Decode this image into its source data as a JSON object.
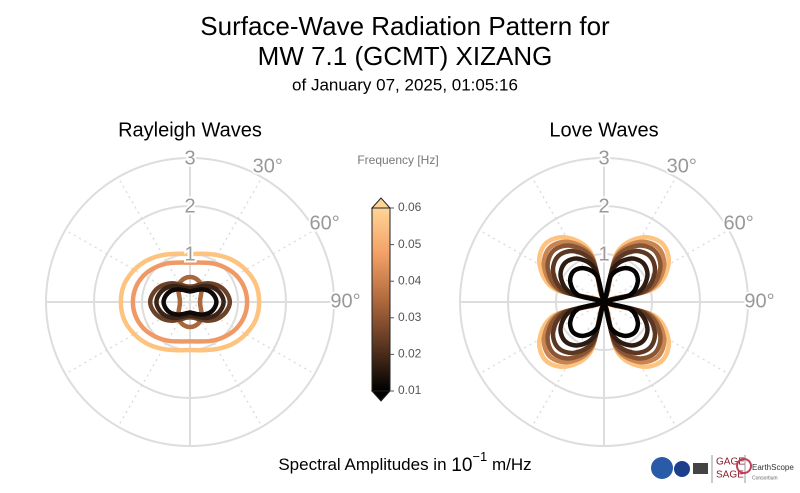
{
  "figure": {
    "title": [
      "Surface-Wave Radiation Pattern for",
      "MW 7.1 (GCMT) XIZANG"
    ],
    "subtitle": "of January 07, 2025, 01:05:16"
  },
  "chart_data": [
    {
      "type": "polar",
      "title": "Rayleigh Waves",
      "rlim": [
        0,
        3
      ],
      "rticks": [
        1,
        2,
        3
      ],
      "thetagrid": [
        0,
        30,
        60,
        90,
        120,
        150,
        180,
        210,
        240,
        270,
        300,
        330
      ],
      "thetaticks": [
        {
          "value": 30,
          "label": "30°"
        },
        {
          "value": 60,
          "label": "60°"
        },
        {
          "value": 90,
          "label": "90°"
        }
      ],
      "azimuth": [
        0,
        15,
        30,
        45,
        60,
        75,
        90,
        105,
        120,
        135,
        150,
        165,
        180,
        195,
        210,
        225,
        240,
        255,
        270,
        285,
        300,
        315,
        330,
        345
      ],
      "series": [
        {
          "color": "#fdc37f",
          "values": [
            1,
            1.04,
            1.13,
            1.24,
            1.34,
            1.42,
            1.44,
            1.42,
            1.34,
            1.24,
            1.13,
            1.04,
            1,
            1.04,
            1.13,
            1.24,
            1.34,
            1.42,
            1.44,
            1.42,
            1.34,
            1.24,
            1.13,
            1.04
          ]
        },
        {
          "color": "#ef9a66",
          "values": [
            0.82,
            0.85,
            0.93,
            1.02,
            1.11,
            1.17,
            1.19,
            1.17,
            1.11,
            1.02,
            0.93,
            0.85,
            0.82,
            0.85,
            0.93,
            1.02,
            1.11,
            1.17,
            1.19,
            1.17,
            1.11,
            1.02,
            0.93,
            0.85
          ]
        },
        {
          "color": "#a8673d",
          "values": [
            0.52,
            0.5,
            0.44,
            0.34,
            0.26,
            0.22,
            0.21,
            0.22,
            0.26,
            0.34,
            0.44,
            0.5,
            0.52,
            0.5,
            0.44,
            0.34,
            0.26,
            0.22,
            0.21,
            0.22,
            0.26,
            0.34,
            0.44,
            0.5
          ]
        },
        {
          "color": "#6b4128",
          "values": [
            0.32,
            0.34,
            0.42,
            0.55,
            0.68,
            0.78,
            0.83,
            0.78,
            0.68,
            0.55,
            0.42,
            0.34,
            0.32,
            0.34,
            0.42,
            0.55,
            0.68,
            0.78,
            0.83,
            0.78,
            0.68,
            0.55,
            0.42,
            0.34
          ]
        },
        {
          "color": "#3a2418",
          "values": [
            0.28,
            0.3,
            0.36,
            0.47,
            0.58,
            0.66,
            0.7,
            0.66,
            0.58,
            0.47,
            0.36,
            0.3,
            0.28,
            0.3,
            0.36,
            0.47,
            0.58,
            0.66,
            0.7,
            0.66,
            0.58,
            0.47,
            0.36,
            0.3
          ]
        },
        {
          "color": "#0f0a08",
          "values": [
            0.22,
            0.24,
            0.29,
            0.37,
            0.46,
            0.52,
            0.55,
            0.52,
            0.46,
            0.37,
            0.29,
            0.24,
            0.22,
            0.24,
            0.29,
            0.37,
            0.46,
            0.52,
            0.55,
            0.52,
            0.46,
            0.37,
            0.29,
            0.24
          ]
        }
      ]
    },
    {
      "type": "polar",
      "title": "Love Waves",
      "rlim": [
        0,
        3
      ],
      "rticks": [
        1,
        2,
        3
      ],
      "thetagrid": [
        0,
        30,
        60,
        90,
        120,
        150,
        180,
        210,
        240,
        270,
        300,
        330
      ],
      "thetaticks": [
        {
          "value": 30,
          "label": "30°"
        },
        {
          "value": 60,
          "label": "60°"
        },
        {
          "value": 90,
          "label": "90°"
        }
      ],
      "azimuth": [
        0,
        15,
        30,
        45,
        60,
        75,
        90,
        105,
        120,
        135,
        150,
        165,
        180,
        195,
        210,
        225,
        240,
        255,
        270,
        285,
        300,
        315,
        330,
        345
      ],
      "series": [
        {
          "color": "#fdc37f",
          "values": [
            0.05,
            1.07,
            1.55,
            1.72,
            1.55,
            1.07,
            0.05,
            1.07,
            1.55,
            1.72,
            1.55,
            1.07,
            0.05,
            1.07,
            1.55,
            1.72,
            1.55,
            1.07,
            0.05,
            1.07,
            1.55,
            1.72,
            1.55,
            1.07
          ]
        },
        {
          "color": "#c98551",
          "values": [
            0.05,
            0.99,
            1.44,
            1.6,
            1.44,
            0.99,
            0.05,
            0.99,
            1.44,
            1.6,
            1.44,
            0.99,
            0.05,
            0.99,
            1.44,
            1.6,
            1.44,
            0.99,
            0.05,
            0.99,
            1.44,
            1.6,
            1.44,
            0.99
          ]
        },
        {
          "color": "#8a5533",
          "values": [
            0.05,
            0.93,
            1.35,
            1.5,
            1.35,
            0.93,
            0.05,
            0.93,
            1.35,
            1.5,
            1.35,
            0.93,
            0.05,
            0.93,
            1.35,
            1.5,
            1.35,
            0.93,
            0.05,
            0.93,
            1.35,
            1.5,
            1.35,
            0.93
          ]
        },
        {
          "color": "#5c3823",
          "values": [
            0.05,
            0.84,
            1.22,
            1.35,
            1.22,
            0.84,
            0.05,
            0.84,
            1.22,
            1.35,
            1.22,
            0.84,
            0.05,
            0.84,
            1.22,
            1.35,
            1.22,
            0.84,
            0.05,
            0.84,
            1.22,
            1.35,
            1.22,
            0.84
          ]
        },
        {
          "color": "#2e1c12",
          "values": [
            0.05,
            0.71,
            1.04,
            1.15,
            1.04,
            0.71,
            0.05,
            0.71,
            1.04,
            1.15,
            1.04,
            0.71,
            0.05,
            0.71,
            1.04,
            1.15,
            1.04,
            0.71,
            0.05,
            0.71,
            1.04,
            1.15,
            1.04,
            0.71
          ]
        },
        {
          "color": "#050302",
          "values": [
            0.05,
            0.56,
            0.81,
            0.9,
            0.81,
            0.56,
            0.05,
            0.56,
            0.81,
            0.9,
            0.81,
            0.56,
            0.05,
            0.56,
            0.81,
            0.9,
            0.81,
            0.56,
            0.05,
            0.56,
            0.81,
            0.9,
            0.81,
            0.56
          ]
        }
      ]
    }
  ],
  "colorbar": {
    "label": "Frequency [Hz]",
    "lim": [
      0.01,
      0.06
    ],
    "ticks": [
      0.01,
      0.02,
      0.03,
      0.04,
      0.05,
      0.06
    ],
    "colormap": [
      "#000000",
      "#5a3520",
      "#b06a3e",
      "#f3a066",
      "#ffd597"
    ]
  },
  "xlabel": {
    "text": "Spectral Amplitudes in ",
    "base": "10",
    "exponent": "−1",
    "unit": "m/Hz"
  },
  "logos": {
    "gage": "GAGE",
    "sage": "SAGE",
    "earthscope": "EarthScope",
    "consortium": "Consortium"
  }
}
